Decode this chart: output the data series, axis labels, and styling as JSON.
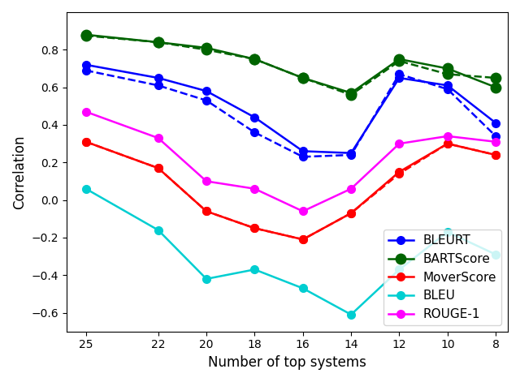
{
  "x": [
    25,
    22,
    20,
    18,
    16,
    14,
    12,
    10,
    8
  ],
  "series": {
    "BLEURT_solid": {
      "y": [
        0.72,
        0.65,
        0.58,
        0.44,
        0.26,
        0.25,
        0.65,
        0.61,
        0.41
      ],
      "color": "#0000ff",
      "linestyle": "solid",
      "linewidth": 1.8,
      "markersize": 7,
      "label": "BLEURT"
    },
    "BLEURT_dashed": {
      "y": [
        0.69,
        0.61,
        0.53,
        0.36,
        0.23,
        0.24,
        0.67,
        0.59,
        0.34
      ],
      "color": "#0000ff",
      "linestyle": "dashed",
      "linewidth": 1.8,
      "markersize": 7
    },
    "BARTScore_solid": {
      "y": [
        0.88,
        0.84,
        0.81,
        0.75,
        0.65,
        0.57,
        0.75,
        0.7,
        0.6
      ],
      "color": "#006400",
      "linestyle": "solid",
      "linewidth": 1.8,
      "markersize": 9,
      "label": "BARTScore"
    },
    "BARTScore_dashed": {
      "y": [
        0.875,
        0.84,
        0.8,
        0.75,
        0.65,
        0.56,
        0.74,
        0.67,
        0.65
      ],
      "color": "#006400",
      "linestyle": "dashed",
      "linewidth": 1.8,
      "markersize": 9
    },
    "MoverScore_solid": {
      "y": [
        0.31,
        0.17,
        -0.06,
        -0.15,
        -0.21,
        -0.07,
        0.15,
        0.3,
        0.24
      ],
      "color": "#ff0000",
      "linestyle": "solid",
      "linewidth": 1.8,
      "markersize": 7,
      "label": "MoverScore"
    },
    "MoverScore_dashed": {
      "y": [
        0.31,
        0.17,
        -0.06,
        -0.15,
        -0.21,
        -0.07,
        0.14,
        0.3,
        0.24
      ],
      "color": "#ff0000",
      "linestyle": "dashed",
      "linewidth": 1.8,
      "markersize": 7
    },
    "BLEU": {
      "y": [
        0.06,
        -0.16,
        -0.42,
        -0.37,
        -0.47,
        -0.61,
        -0.37,
        -0.17,
        -0.29
      ],
      "color": "#00ced1",
      "linestyle": "solid",
      "linewidth": 1.8,
      "markersize": 7,
      "label": "BLEU"
    },
    "ROUGE_1": {
      "y": [
        0.47,
        0.33,
        0.1,
        0.06,
        -0.06,
        0.06,
        0.3,
        0.34,
        0.31
      ],
      "color": "#ff00ff",
      "linestyle": "solid",
      "linewidth": 1.8,
      "markersize": 7,
      "label": "ROUGE-1"
    }
  },
  "xlabel": "Number of top systems",
  "ylabel": "Correlation",
  "xlim": [
    25.8,
    7.5
  ],
  "ylim": [
    -0.7,
    1.0
  ],
  "xticks": [
    25,
    22,
    20,
    18,
    16,
    14,
    12,
    10,
    8
  ],
  "yticks": [
    -0.6,
    -0.4,
    -0.2,
    0.0,
    0.2,
    0.4,
    0.6,
    0.8
  ],
  "legend_loc": "lower right",
  "legend_fontsize": 11,
  "axis_fontsize": 12,
  "tick_fontsize": 10,
  "background_color": "#ffffff"
}
